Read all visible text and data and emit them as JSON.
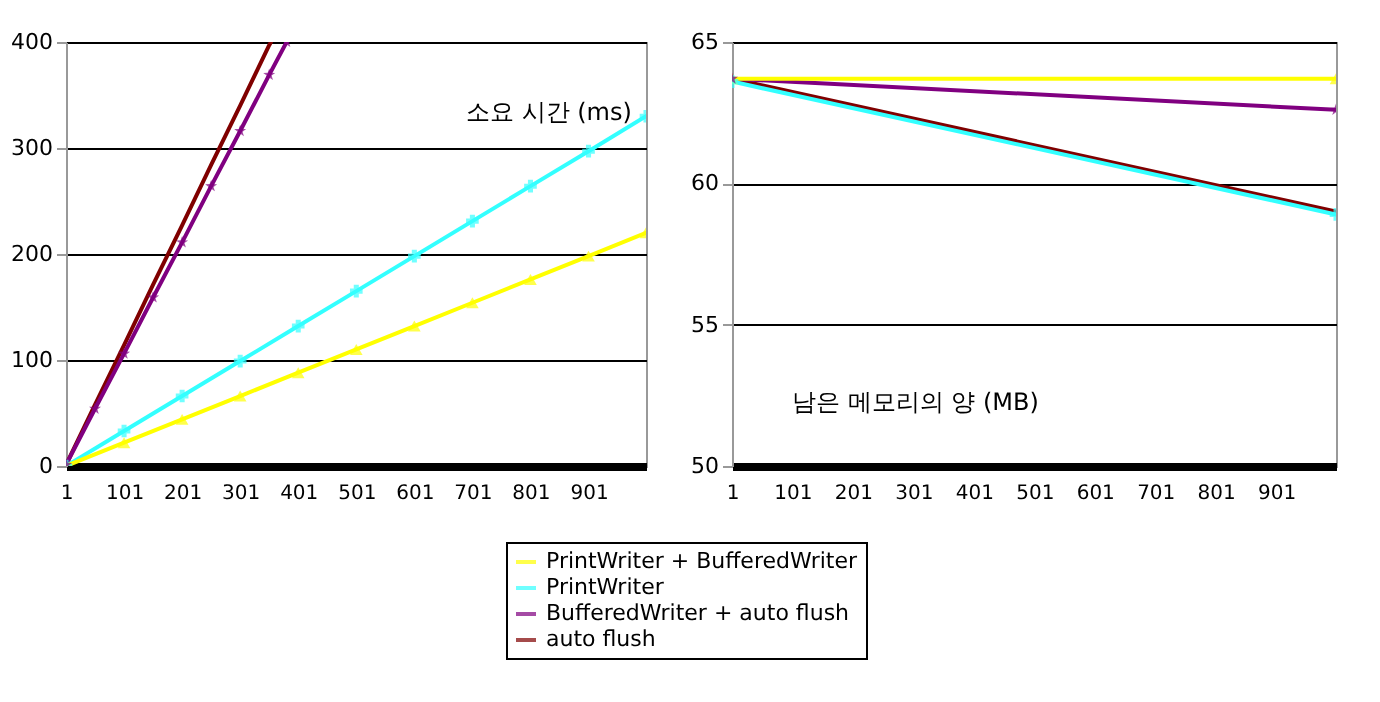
{
  "chart_data": [
    {
      "type": "line",
      "annotations": [
        "소요 시간 (ms)"
      ],
      "xlim": [
        1,
        1000
      ],
      "xticks": [
        1,
        101,
        201,
        301,
        401,
        501,
        601,
        701,
        801,
        901
      ],
      "ylim": [
        0,
        400
      ],
      "yticks": [
        0,
        100,
        200,
        300,
        400
      ],
      "grid": "y",
      "legend": "bottom",
      "line_style": "solid",
      "series": [
        {
          "name": "PrintWriter + BufferedWriter",
          "color": "#ffff00",
          "marker": "triangle",
          "x": [
            1,
            101,
            201,
            301,
            401,
            501,
            601,
            701,
            801,
            901,
            1000
          ],
          "values": [
            0,
            22,
            44,
            66,
            88,
            110,
            132,
            154,
            176,
            198,
            220
          ]
        },
        {
          "name": "PrintWriter",
          "color": "#33ffff",
          "marker": "cross",
          "x": [
            1,
            101,
            201,
            301,
            401,
            501,
            601,
            701,
            801,
            901,
            1000
          ],
          "values": [
            0,
            33,
            66,
            99,
            132,
            165,
            198,
            231,
            264,
            297,
            330
          ]
        },
        {
          "name": "BufferedWriter + auto flush",
          "color": "#800080",
          "marker": "star",
          "x": [
            1,
            51,
            101,
            151,
            201,
            251,
            301,
            351,
            381
          ],
          "values": [
            1,
            54,
            106,
            159,
            211,
            264,
            316,
            369,
            400
          ]
        },
        {
          "name": "auto flush",
          "color": "#800000",
          "marker": "none",
          "x": [
            1,
            51,
            101,
            151,
            201,
            251,
            301,
            351,
            354
          ],
          "values": [
            1,
            58,
            114,
            171,
            227,
            284,
            340,
            397,
            400
          ]
        }
      ]
    },
    {
      "type": "line",
      "annotations": [
        "남은 메모리의 양 (MB)"
      ],
      "xlim": [
        1,
        1000
      ],
      "xticks": [
        1,
        101,
        201,
        301,
        401,
        501,
        601,
        701,
        801,
        901
      ],
      "ylim": [
        50,
        65
      ],
      "yticks": [
        50,
        55,
        60,
        65
      ],
      "grid": "y",
      "legend": "bottom",
      "line_style": "solid",
      "series": [
        {
          "name": "PrintWriter + BufferedWriter",
          "color": "#ffff00",
          "marker": "triangle",
          "x": [
            1,
            1000
          ],
          "values": [
            63.7,
            63.7
          ]
        },
        {
          "name": "PrintWriter",
          "color": "#33ffff",
          "marker": "cross",
          "x": [
            1,
            1000
          ],
          "values": [
            63.6,
            58.9
          ]
        },
        {
          "name": "BufferedWriter + auto flush",
          "color": "#800080",
          "marker": "star",
          "x": [
            1,
            1000
          ],
          "values": [
            63.7,
            62.6
          ]
        },
        {
          "name": "auto flush",
          "color": "#800000",
          "marker": "none",
          "x": [
            1,
            1000
          ],
          "values": [
            63.7,
            59.0
          ]
        }
      ]
    }
  ]
}
